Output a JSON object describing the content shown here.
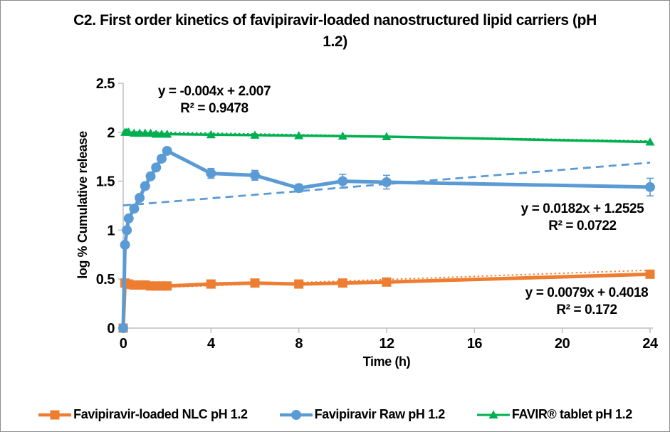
{
  "chart_data": {
    "type": "line",
    "title": "C2. First order kinetics of favipiravir-loaded nanostructured lipid carriers (pH 1.2)",
    "xlabel": "Time (h)",
    "ylabel": "log % Cumulative release",
    "xlim": [
      0,
      24
    ],
    "ylim": [
      0,
      2.5
    ],
    "xticks": [
      0,
      4,
      8,
      12,
      16,
      20,
      24
    ],
    "yticks": [
      0,
      0.5,
      1,
      1.5,
      2,
      2.5
    ],
    "grid": false,
    "legend_position": "bottom",
    "axis_color": "#BFBFBF",
    "x": [
      0,
      0.083,
      0.167,
      0.25,
      0.5,
      0.75,
      1,
      1.25,
      1.5,
      1.75,
      2,
      4,
      6,
      8,
      10,
      12,
      24
    ],
    "series": [
      {
        "name": "Favipiravir-loaded NLC pH 1.2",
        "color": "#ED7D31",
        "marker": "square",
        "values": [
          0,
          0.46,
          0.45,
          0.45,
          0.44,
          0.44,
          0.44,
          0.43,
          0.43,
          0.43,
          0.43,
          0.45,
          0.46,
          0.45,
          0.46,
          0.47,
          0.55
        ],
        "error_bars": []
      },
      {
        "name": "Favipiravir Raw pH 1.2",
        "color": "#5B9BD5",
        "marker": "circle",
        "values": [
          0,
          0.85,
          1.0,
          1.12,
          1.22,
          1.33,
          1.45,
          1.55,
          1.64,
          1.73,
          1.81,
          1.58,
          1.56,
          1.43,
          1.5,
          1.49,
          1.44
        ],
        "error_bars": [
          {
            "t": 4,
            "e": 0.05
          },
          {
            "t": 6,
            "e": 0.05
          },
          {
            "t": 8,
            "e": 0.04
          },
          {
            "t": 10,
            "e": 0.07
          },
          {
            "t": 12,
            "e": 0.07
          },
          {
            "t": 24,
            "e": 0.09
          }
        ]
      },
      {
        "name": "FAVIR® tablet pH 1.2",
        "color": "#00B050",
        "marker": "triangle",
        "values": [
          null,
          2.0,
          2.0,
          2.0,
          1.99,
          1.99,
          1.99,
          1.99,
          1.98,
          1.98,
          1.98,
          1.975,
          1.97,
          1.965,
          1.96,
          1.955,
          1.9
        ],
        "error_bars": []
      }
    ],
    "trendlines": [
      {
        "series": "FAVIR® tablet pH 1.2",
        "equation": "y = -0.004x + 2.007",
        "r2": "R² = 0.9478",
        "slope": -0.004,
        "intercept": 2.007,
        "style": "dotted",
        "color": "#00A04A"
      },
      {
        "series": "Favipiravir Raw pH 1.2",
        "equation": "y = 0.0182x + 1.2525",
        "r2": "R² = 0.0722",
        "slope": 0.0182,
        "intercept": 1.2525,
        "style": "dashed",
        "color": "#5B9BD5"
      },
      {
        "series": "Favipiravir-loaded NLC pH 1.2",
        "equation": "y = 0.0079x + 0.4018",
        "r2": "R² = 0.172",
        "slope": 0.0079,
        "intercept": 0.4018,
        "style": "dotted",
        "color": "#ED7D31"
      }
    ]
  }
}
